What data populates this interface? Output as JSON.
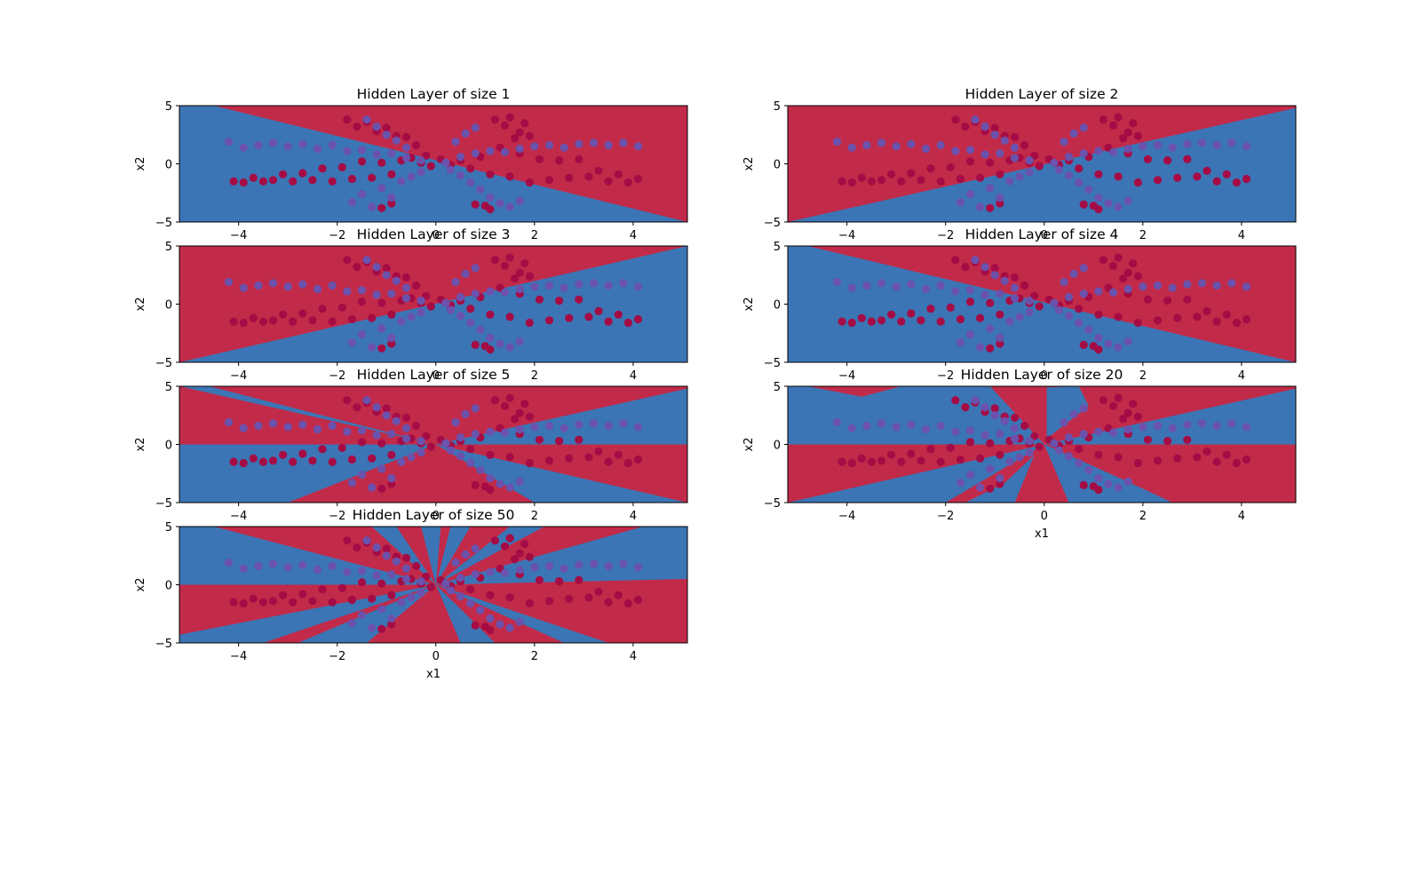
{
  "figure": {
    "colors": {
      "red_region": "#c22a49",
      "blue_region": "#3b75b5",
      "red_points": "#a50c45",
      "blue_points": "#6a52ad",
      "axis": "#000000"
    }
  },
  "chart_data": [
    {
      "type": "scatter",
      "title": "Hidden Layer of size 1",
      "xlabel": "",
      "ylabel": "x2",
      "xlim": [
        -5.2,
        5.1
      ],
      "ylim": [
        -5,
        5
      ],
      "xticks": [
        -4,
        -2,
        0,
        2,
        4
      ],
      "yticks": [
        -5,
        0,
        5
      ],
      "decision_regions": [
        {
          "class": "blue",
          "polygon": [
            [
              -5.2,
              5
            ],
            [
              -4.5,
              5
            ],
            [
              5.1,
              -5
            ],
            [
              -5.2,
              -5
            ]
          ]
        }
      ],
      "series": []
    },
    {
      "type": "scatter",
      "title": "Hidden Layer of size 2",
      "xlabel": "",
      "ylabel": "x2",
      "xlim": [
        -5.2,
        5.1
      ],
      "ylim": [
        -5,
        5
      ],
      "xticks": [
        -4,
        -2,
        0,
        2,
        4
      ],
      "yticks": [
        -5,
        0,
        5
      ],
      "decision_regions": [
        {
          "class": "blue",
          "polygon": [
            [
              -5.2,
              -5
            ],
            [
              5.1,
              4.8
            ],
            [
              5.1,
              -5
            ]
          ]
        }
      ],
      "series": []
    },
    {
      "type": "scatter",
      "title": "Hidden Layer of size 3",
      "xlabel": "",
      "ylabel": "x2",
      "xlim": [
        -5.2,
        5.1
      ],
      "ylim": [
        -5,
        5
      ],
      "xticks": [
        -4,
        -2,
        0,
        2,
        4
      ],
      "yticks": [
        -5,
        0,
        5
      ],
      "decision_regions": [
        {
          "class": "blue",
          "polygon": [
            [
              -5.2,
              -5
            ],
            [
              5.1,
              5
            ],
            [
              5.1,
              -5
            ]
          ]
        }
      ],
      "series": []
    },
    {
      "type": "scatter",
      "title": "Hidden Layer of size 4",
      "xlabel": "",
      "ylabel": "x2",
      "xlim": [
        -5.2,
        5.1
      ],
      "ylim": [
        -5,
        5
      ],
      "xticks": [
        -4,
        -2,
        0,
        2,
        4
      ],
      "yticks": [
        -5,
        0,
        5
      ],
      "decision_regions": [
        {
          "class": "blue",
          "polygon": [
            [
              -5.2,
              5
            ],
            [
              -4.8,
              5
            ],
            [
              5.1,
              -5
            ],
            [
              -5.2,
              -5
            ]
          ]
        }
      ],
      "series": []
    },
    {
      "type": "scatter",
      "title": "Hidden Layer of size 5",
      "xlabel": "",
      "ylabel": "x2",
      "xlim": [
        -5.2,
        5.1
      ],
      "ylim": [
        -5,
        5
      ],
      "xticks": [
        -4,
        -2,
        0,
        2,
        4
      ],
      "yticks": [
        -5,
        0,
        5
      ],
      "decision_regions": [
        {
          "class": "blue",
          "polygon": [
            [
              -5.2,
              5
            ],
            [
              -4.6,
              5
            ],
            [
              0,
              0
            ]
          ]
        },
        {
          "class": "blue",
          "polygon": [
            [
              0,
              0
            ],
            [
              5.1,
              4.8
            ],
            [
              5.1,
              0
            ]
          ]
        },
        {
          "class": "blue",
          "polygon": [
            [
              0,
              0
            ],
            [
              -5.2,
              0
            ],
            [
              -5.2,
              -5
            ],
            [
              -3,
              -5
            ]
          ]
        },
        {
          "class": "blue",
          "polygon": [
            [
              0,
              0
            ],
            [
              2,
              -5
            ],
            [
              5.1,
              -5
            ]
          ]
        }
      ],
      "series": []
    },
    {
      "type": "scatter",
      "title": "Hidden Layer of size 20",
      "xlabel": "x1",
      "ylabel": "x2",
      "xlim": [
        -5.2,
        5.1
      ],
      "ylim": [
        -5,
        5
      ],
      "xticks": [
        -4,
        -2,
        0,
        2,
        4
      ],
      "yticks": [
        -5,
        0,
        5
      ],
      "decision_regions": [
        {
          "class": "blue",
          "polygon": [
            [
              -5.2,
              5
            ],
            [
              -4.8,
              5
            ],
            [
              -3.7,
              4.1
            ],
            [
              -2.9,
              5
            ],
            [
              -1.1,
              5
            ],
            [
              0,
              0
            ],
            [
              -5.2,
              0
            ]
          ]
        },
        {
          "class": "blue",
          "polygon": [
            [
              0.05,
              4.9
            ],
            [
              0.7,
              5
            ],
            [
              0.9,
              3.3
            ],
            [
              0.05,
              0.5
            ]
          ]
        },
        {
          "class": "blue",
          "polygon": [
            [
              0,
              0
            ],
            [
              5.1,
              4.8
            ],
            [
              5.1,
              0
            ]
          ]
        },
        {
          "class": "blue",
          "polygon": [
            [
              -5.2,
              -5
            ],
            [
              -2,
              -5
            ],
            [
              0,
              0
            ]
          ]
        },
        {
          "class": "blue",
          "polygon": [
            [
              0,
              0
            ],
            [
              0.5,
              -5
            ],
            [
              2.6,
              -5
            ],
            [
              1.9,
              -3.6
            ],
            [
              0.8,
              -1.5
            ]
          ]
        },
        {
          "class": "blue",
          "polygon": [
            [
              -0.2,
              -0.9
            ],
            [
              -0.8,
              -3.3
            ],
            [
              -1.6,
              -5
            ],
            [
              -0.6,
              -5
            ]
          ]
        }
      ],
      "series": []
    },
    {
      "type": "scatter",
      "title": "Hidden Layer of size 50",
      "xlabel": "x1",
      "ylabel": "x2",
      "xlim": [
        -5.2,
        5.1
      ],
      "ylim": [
        -5,
        5
      ],
      "xticks": [
        -4,
        -2,
        0,
        2,
        4
      ],
      "yticks": [
        -5,
        0,
        5
      ],
      "decision_regions": [
        {
          "class": "blue",
          "polygon": [
            [
              -5.2,
              5
            ],
            [
              -4.5,
              5
            ],
            [
              0,
              0
            ],
            [
              -5.2,
              0
            ]
          ]
        },
        {
          "class": "blue",
          "polygon": [
            [
              0,
              0
            ],
            [
              -1.3,
              5
            ],
            [
              -0.8,
              5
            ]
          ]
        },
        {
          "class": "blue",
          "polygon": [
            [
              0,
              0
            ],
            [
              -0.3,
              5
            ],
            [
              0.1,
              5
            ]
          ]
        },
        {
          "class": "blue",
          "polygon": [
            [
              0,
              0
            ],
            [
              0.3,
              5
            ],
            [
              0.7,
              5
            ]
          ]
        },
        {
          "class": "blue",
          "polygon": [
            [
              0,
              0
            ],
            [
              1.5,
              5
            ],
            [
              2.2,
              5
            ]
          ]
        },
        {
          "class": "blue",
          "polygon": [
            [
              0,
              0
            ],
            [
              4.2,
              5
            ],
            [
              5.1,
              5
            ],
            [
              5.1,
              0.5
            ]
          ]
        },
        {
          "class": "blue",
          "polygon": [
            [
              -5.2,
              -5
            ],
            [
              -3.5,
              -5
            ],
            [
              0,
              0
            ],
            [
              -5.2,
              -4.3
            ]
          ]
        },
        {
          "class": "blue",
          "polygon": [
            [
              0,
              0
            ],
            [
              -2.8,
              -5
            ],
            [
              -1.4,
              -5
            ]
          ]
        },
        {
          "class": "blue",
          "polygon": [
            [
              0,
              0
            ],
            [
              0.5,
              -5
            ],
            [
              1.2,
              -5
            ]
          ]
        },
        {
          "class": "blue",
          "polygon": [
            [
              0,
              0
            ],
            [
              2.6,
              -5
            ],
            [
              3.5,
              -5
            ]
          ]
        }
      ],
      "series": []
    }
  ],
  "dataset": {
    "red": [
      [
        -4.1,
        -1.5
      ],
      [
        -3.9,
        -1.6
      ],
      [
        -3.7,
        -1.2
      ],
      [
        -3.5,
        -1.5
      ],
      [
        -3.3,
        -1.4
      ],
      [
        -3.1,
        -0.9
      ],
      [
        -2.9,
        -1.5
      ],
      [
        -2.7,
        -0.8
      ],
      [
        -2.5,
        -1.4
      ],
      [
        -2.3,
        -0.4
      ],
      [
        -2.1,
        -1.5
      ],
      [
        -1.9,
        -0.3
      ],
      [
        -1.7,
        -1.3
      ],
      [
        -1.5,
        0.2
      ],
      [
        -1.3,
        -1.2
      ],
      [
        -1.1,
        0.1
      ],
      [
        -0.9,
        -0.9
      ],
      [
        -0.7,
        0.3
      ],
      [
        -0.5,
        0.5
      ],
      [
        -0.3,
        0.1
      ],
      [
        -0.2,
        0.7
      ],
      [
        -0.1,
        -0.2
      ],
      [
        0.1,
        0.4
      ],
      [
        0.3,
        -0.1
      ],
      [
        0.5,
        0.3
      ],
      [
        0.7,
        -0.4
      ],
      [
        0.9,
        0.6
      ],
      [
        1.1,
        -0.9
      ],
      [
        1.3,
        1.4
      ],
      [
        1.5,
        -1.1
      ],
      [
        1.7,
        0.9
      ],
      [
        1.9,
        -1.6
      ],
      [
        2.1,
        0.4
      ],
      [
        2.3,
        -1.4
      ],
      [
        2.5,
        0.3
      ],
      [
        2.7,
        -1.2
      ],
      [
        2.9,
        0.4
      ],
      [
        3.1,
        -1.1
      ],
      [
        3.3,
        -0.6
      ],
      [
        3.5,
        -1.5
      ],
      [
        3.7,
        -0.9
      ],
      [
        3.9,
        -1.6
      ],
      [
        4.1,
        -1.3
      ],
      [
        -1.8,
        3.8
      ],
      [
        -1.6,
        3.2
      ],
      [
        -1.4,
        3.6
      ],
      [
        -1.2,
        2.8
      ],
      [
        -1.0,
        3.1
      ],
      [
        -0.8,
        2.4
      ],
      [
        -0.6,
        2.3
      ],
      [
        -0.4,
        1.6
      ],
      [
        1.2,
        3.8
      ],
      [
        1.4,
        3.3
      ],
      [
        1.5,
        4.0
      ],
      [
        1.7,
        2.7
      ],
      [
        1.8,
        3.5
      ],
      [
        1.9,
        2.4
      ],
      [
        1.6,
        2.2
      ],
      [
        0.8,
        -3.5
      ],
      [
        1.0,
        -3.6
      ],
      [
        1.1,
        -3.9
      ],
      [
        -0.9,
        -3.4
      ],
      [
        -1.1,
        -3.8
      ]
    ],
    "blue": [
      [
        -4.2,
        1.9
      ],
      [
        -3.9,
        1.4
      ],
      [
        -3.6,
        1.6
      ],
      [
        -3.3,
        1.8
      ],
      [
        -3.0,
        1.5
      ],
      [
        -2.7,
        1.7
      ],
      [
        -2.4,
        1.3
      ],
      [
        -2.1,
        1.6
      ],
      [
        -1.8,
        1.1
      ],
      [
        -1.5,
        1.2
      ],
      [
        -1.2,
        0.8
      ],
      [
        -0.9,
        0.9
      ],
      [
        -0.6,
        0.5
      ],
      [
        -0.3,
        0.3
      ],
      [
        0.2,
        0.1
      ],
      [
        0.5,
        0.6
      ],
      [
        0.8,
        0.9
      ],
      [
        1.1,
        1.1
      ],
      [
        1.4,
        1.0
      ],
      [
        1.7,
        1.3
      ],
      [
        2.0,
        1.5
      ],
      [
        2.3,
        1.6
      ],
      [
        2.6,
        1.4
      ],
      [
        2.9,
        1.7
      ],
      [
        3.2,
        1.8
      ],
      [
        3.5,
        1.6
      ],
      [
        3.8,
        1.8
      ],
      [
        4.1,
        1.5
      ],
      [
        -1.7,
        -3.3
      ],
      [
        -1.5,
        -2.6
      ],
      [
        -1.3,
        -3.7
      ],
      [
        -1.1,
        -2.1
      ],
      [
        -0.9,
        -2.9
      ],
      [
        -0.7,
        -1.5
      ],
      [
        -0.5,
        -1.1
      ],
      [
        -0.3,
        -0.7
      ],
      [
        0.3,
        -0.5
      ],
      [
        0.5,
        -1.0
      ],
      [
        0.7,
        -1.6
      ],
      [
        0.9,
        -2.2
      ],
      [
        1.1,
        -2.9
      ],
      [
        1.3,
        -3.4
      ],
      [
        1.5,
        -3.7
      ],
      [
        1.7,
        -3.2
      ],
      [
        0.4,
        1.9
      ],
      [
        0.6,
        2.6
      ],
      [
        0.8,
        3.1
      ],
      [
        -0.6,
        1.4
      ],
      [
        -0.8,
        2.0
      ],
      [
        -1.0,
        2.5
      ],
      [
        -1.2,
        3.2
      ],
      [
        -1.4,
        3.8
      ]
    ]
  }
}
